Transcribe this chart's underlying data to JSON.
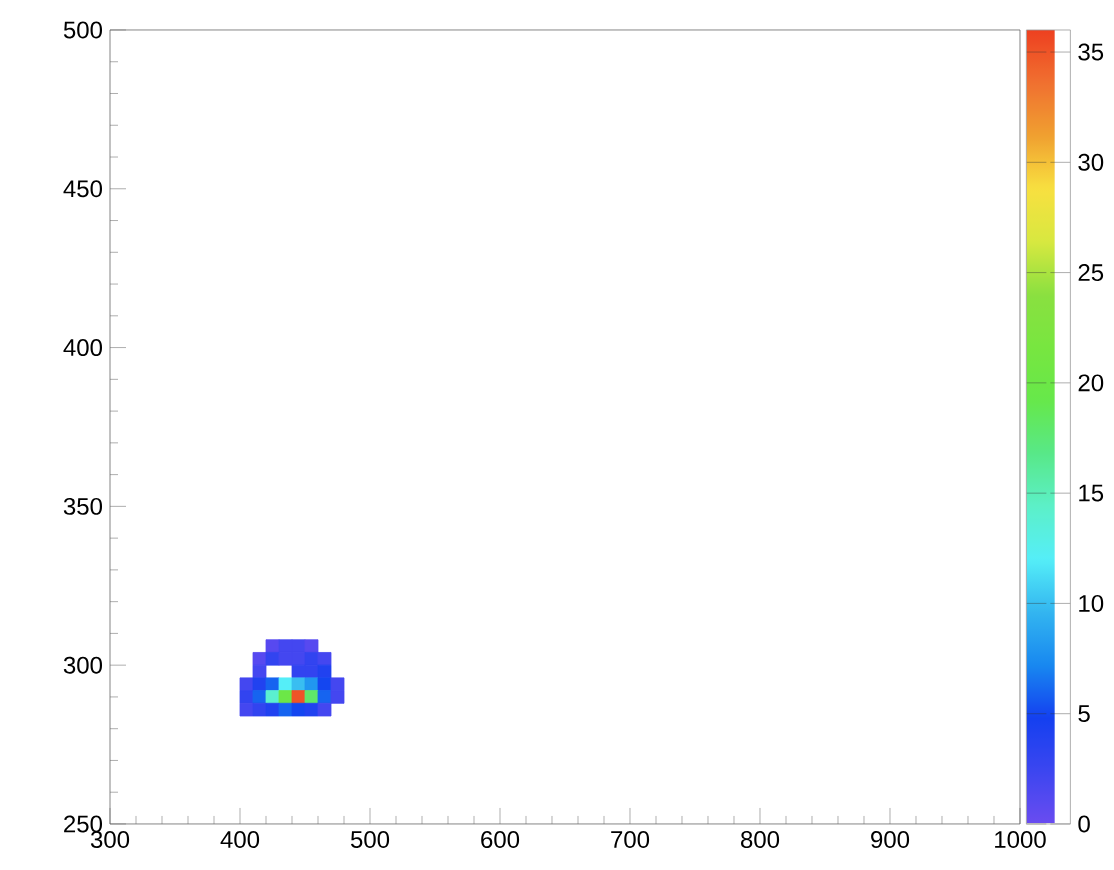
{
  "chart_data": {
    "type": "heatmap",
    "x": [
      405,
      415,
      425,
      435,
      445,
      455,
      465,
      475
    ],
    "y": [
      306,
      302,
      298,
      294,
      290,
      286
    ],
    "cells": [
      [
        null,
        null,
        1,
        2,
        2,
        1,
        null,
        null
      ],
      [
        null,
        1,
        3,
        2,
        2,
        3,
        2,
        null
      ],
      [
        null,
        2,
        null,
        null,
        3,
        3,
        4,
        null
      ],
      [
        2,
        4,
        6,
        12,
        10,
        8,
        5,
        2
      ],
      [
        3,
        6,
        14,
        20,
        35,
        18,
        6,
        2
      ],
      [
        2,
        3,
        4,
        6,
        5,
        4,
        2,
        null
      ]
    ],
    "xlim": [
      300,
      1000
    ],
    "ylim": [
      250,
      500
    ],
    "xticks": [
      300,
      400,
      500,
      600,
      700,
      800,
      900,
      1000
    ],
    "yticks": [
      250,
      300,
      350,
      400,
      450,
      500
    ],
    "clim": [
      0,
      36
    ],
    "cticks": [
      0,
      5,
      10,
      15,
      20,
      25,
      30,
      35
    ],
    "grid": false
  }
}
